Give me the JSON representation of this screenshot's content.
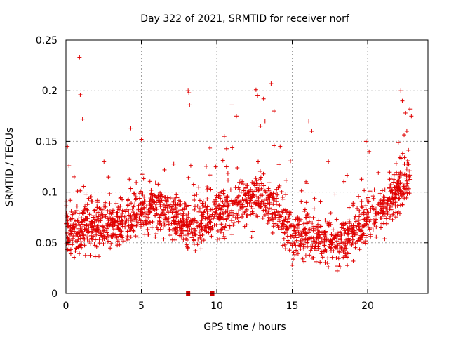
{
  "chart_data": {
    "type": "scatter",
    "title": "Day 322 of 2021, SRMTID for receiver norf",
    "xlabel": "GPS time / hours",
    "ylabel": "SRMTID / TECUs",
    "xlim": [
      0,
      24
    ],
    "ylim": [
      0,
      0.25
    ],
    "xticks": [
      0,
      5,
      10,
      15,
      20
    ],
    "xtick_labels": [
      "0",
      "5",
      "10",
      "15",
      "20"
    ],
    "yticks": [
      0,
      0.05,
      0.1,
      0.15,
      0.2,
      0.25
    ],
    "ytick_labels": [
      "0",
      "0.05",
      "0.1",
      "0.15",
      "0.2",
      "0.25"
    ],
    "grid": true,
    "marker": "plus",
    "marker_color": "#e00000",
    "trend": {
      "x": [
        0,
        0.5,
        1,
        2,
        3,
        4,
        5,
        6,
        7,
        8,
        9,
        10,
        11,
        12,
        13,
        14,
        15,
        16,
        17,
        18,
        19,
        20,
        21,
        22,
        22.8
      ],
      "y": [
        0.07,
        0.06,
        0.065,
        0.07,
        0.065,
        0.072,
        0.08,
        0.085,
        0.075,
        0.065,
        0.07,
        0.08,
        0.085,
        0.09,
        0.095,
        0.08,
        0.055,
        0.06,
        0.055,
        0.05,
        0.06,
        0.075,
        0.085,
        0.1,
        0.11
      ]
    },
    "outliers": {
      "x": [
        0.1,
        0.2,
        0.9,
        0.95,
        1.1,
        4.3,
        5.0,
        8.1,
        8.15,
        8.2,
        10.5,
        11.0,
        11.3,
        12.6,
        12.7,
        12.9,
        13.1,
        13.2,
        13.6,
        13.8,
        14.2,
        16.1,
        16.3,
        17.4,
        19.9,
        20.1,
        22.2,
        22.3,
        22.5,
        22.6,
        22.8,
        22.9
      ],
      "y": [
        0.145,
        0.126,
        0.233,
        0.196,
        0.172,
        0.163,
        0.152,
        0.2,
        0.198,
        0.186,
        0.155,
        0.186,
        0.175,
        0.201,
        0.195,
        0.165,
        0.192,
        0.17,
        0.207,
        0.18,
        0.145,
        0.17,
        0.16,
        0.13,
        0.15,
        0.14,
        0.2,
        0.19,
        0.178,
        0.16,
        0.182,
        0.175
      ]
    },
    "axis_markers_x": [
      8.1,
      9.7
    ]
  }
}
